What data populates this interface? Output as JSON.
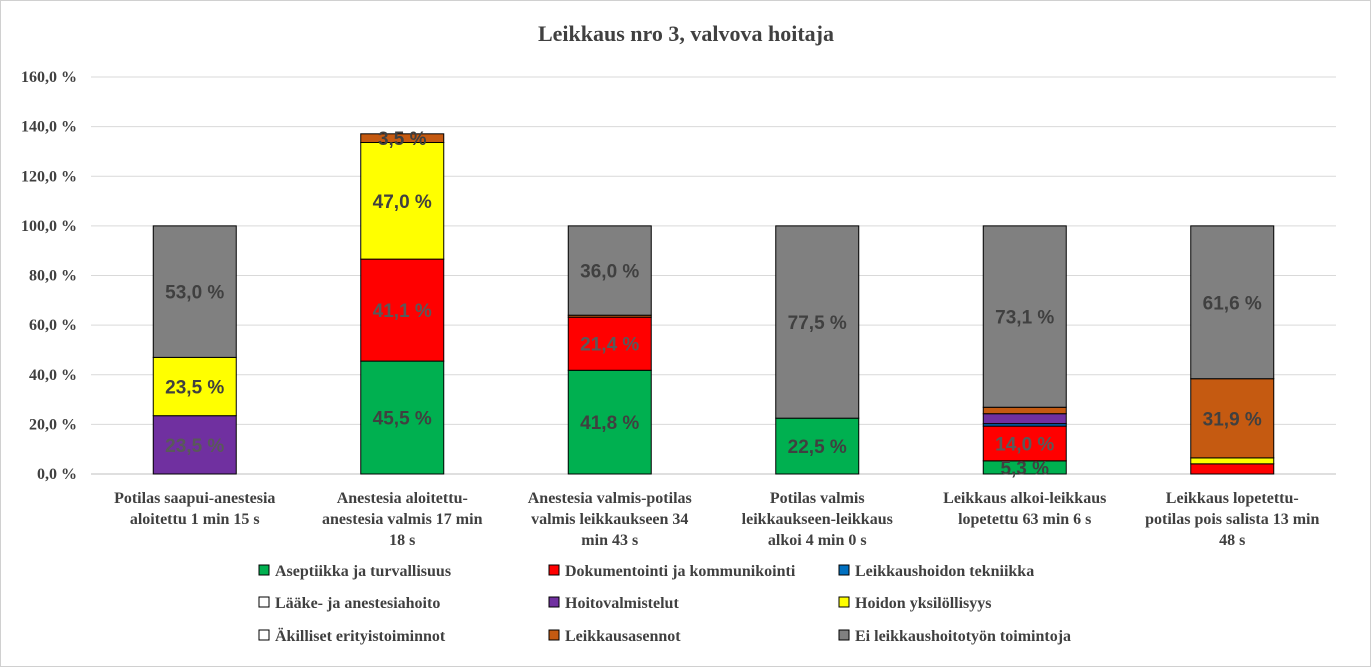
{
  "chart_data": {
    "type": "bar",
    "stacked": true,
    "title": "Leikkaus nro 3, valvova hoitaja",
    "xlabel": "",
    "ylabel": "",
    "ylim": [
      0,
      160
    ],
    "ytick_values": [
      0,
      20,
      40,
      60,
      80,
      100,
      120,
      140,
      160
    ],
    "ytick_labels": [
      "0,0 %",
      "20,0 %",
      "40,0 %",
      "60,0 %",
      "80,0 %",
      "100,0 %",
      "120,0 %",
      "140,0 %",
      "160,0 %"
    ],
    "gridlines": true,
    "legend_position": "bottom",
    "categories": [
      [
        "Potilas saapui-anestesia",
        "aloitettu 1 min 15 s"
      ],
      [
        "Anestesia aloitettu-",
        "anestesia valmis 17 min",
        "18 s"
      ],
      [
        "Anestesia valmis-potilas",
        "valmis leikkaukseen 34",
        "min 43 s"
      ],
      [
        "Potilas valmis",
        "leikkaukseen-leikkaus",
        "alkoi 4 min 0 s"
      ],
      [
        "Leikkaus alkoi-leikkaus",
        "lopetettu 63 min 6 s"
      ],
      [
        "Leikkaus lopetettu-",
        "potilas pois salista 13 min",
        "48 s"
      ]
    ],
    "series": [
      {
        "name": "Aseptiikka ja turvallisuus",
        "color": "#00b050",
        "values": [
          0,
          45.5,
          41.8,
          22.5,
          5.3,
          0
        ],
        "labels": [
          "",
          "45,5 %",
          "41,8 %",
          "22,5 %",
          "5,3 %",
          ""
        ]
      },
      {
        "name": "Dokumentointi ja kommunikointi",
        "color": "#ff0000",
        "values": [
          0,
          41.1,
          21.4,
          0,
          14.0,
          4.1
        ],
        "labels": [
          "",
          "41,1 %",
          "21,4 %",
          "",
          "14,0 %",
          ""
        ]
      },
      {
        "name": "Leikkaushoidon tekniikka",
        "color": "#0070c0",
        "values": [
          0,
          0,
          0,
          0,
          1.0,
          0
        ],
        "labels": [
          "",
          "",
          "",
          "",
          "",
          ""
        ]
      },
      {
        "name": "Lääke- ja anestesiahoito",
        "color": "#ffffff",
        "values": [
          0,
          0,
          0,
          0,
          0,
          0
        ],
        "labels": [
          "",
          "",
          "",
          "",
          "",
          ""
        ]
      },
      {
        "name": "Hoitovalmistelut",
        "color": "#7030a0",
        "values": [
          23.5,
          0,
          0,
          0,
          4.0,
          0
        ],
        "labels": [
          "23,5 %",
          "",
          "",
          "",
          "",
          ""
        ]
      },
      {
        "name": "Hoidon yksilöllisyys",
        "color": "#ffff00",
        "values": [
          23.5,
          47.0,
          0,
          0,
          0,
          2.4
        ],
        "labels": [
          "23,5 %",
          "47,0 %",
          "",
          "",
          "",
          ""
        ]
      },
      {
        "name": "Äkilliset erityistoiminnot",
        "color": "#ffffff",
        "values": [
          0,
          0,
          0,
          0,
          0,
          0
        ],
        "labels": [
          "",
          "",
          "",
          "",
          "",
          ""
        ]
      },
      {
        "name": "Leikkausasennot",
        "color": "#c55a11",
        "values": [
          0,
          3.5,
          0.8,
          0,
          2.6,
          31.9
        ],
        "labels": [
          "",
          "3,5 %",
          "",
          "",
          "",
          "31,9 %"
        ]
      },
      {
        "name": "Ei leikkaushoitotyön toimintoja",
        "color": "#808080",
        "values": [
          53.0,
          0,
          36.0,
          77.5,
          73.1,
          61.6
        ],
        "labels": [
          "53,0 %",
          "",
          "36,0 %",
          "77,5 %",
          "73,1 %",
          "61,6 %"
        ]
      }
    ]
  }
}
